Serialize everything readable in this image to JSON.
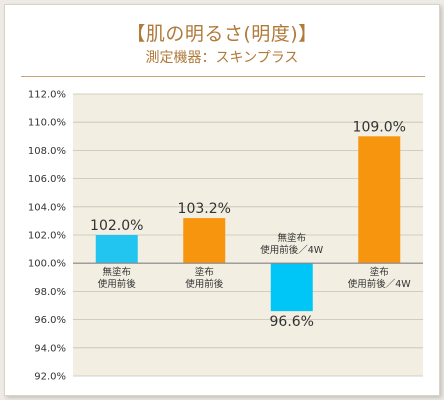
{
  "header": {
    "title": "【肌の明るさ(明度)】",
    "subtitle": "測定機器：スキンプラス"
  },
  "chart_data": {
    "type": "bar",
    "categories": [
      [
        "無塗布",
        "使用前後"
      ],
      [
        "塗布",
        "使用前後"
      ],
      [
        "無塗布",
        "使用前後／4W"
      ],
      [
        "塗布",
        "使用前後／4W"
      ]
    ],
    "values": [
      102.0,
      103.2,
      96.6,
      109.0
    ],
    "value_labels": [
      "102.0%",
      "103.2%",
      "96.6%",
      "109.0%"
    ],
    "baseline": 100.0,
    "ylim": [
      92.0,
      112.0
    ],
    "yticks": [
      112.0,
      110.0,
      108.0,
      106.0,
      104.0,
      102.0,
      100.0,
      98.0,
      96.0,
      94.0,
      92.0
    ],
    "ytick_labels": [
      "112.0%",
      "110.0%",
      "108.0%",
      "106.0%",
      "104.0%",
      "102.0%",
      "100.0%",
      "98.0%",
      "96.0%",
      "94.0%",
      "92.0%"
    ],
    "grid": true,
    "colors": [
      "#22c4f0",
      "#f7950e",
      "#00c6f7",
      "#f7950e"
    ]
  }
}
